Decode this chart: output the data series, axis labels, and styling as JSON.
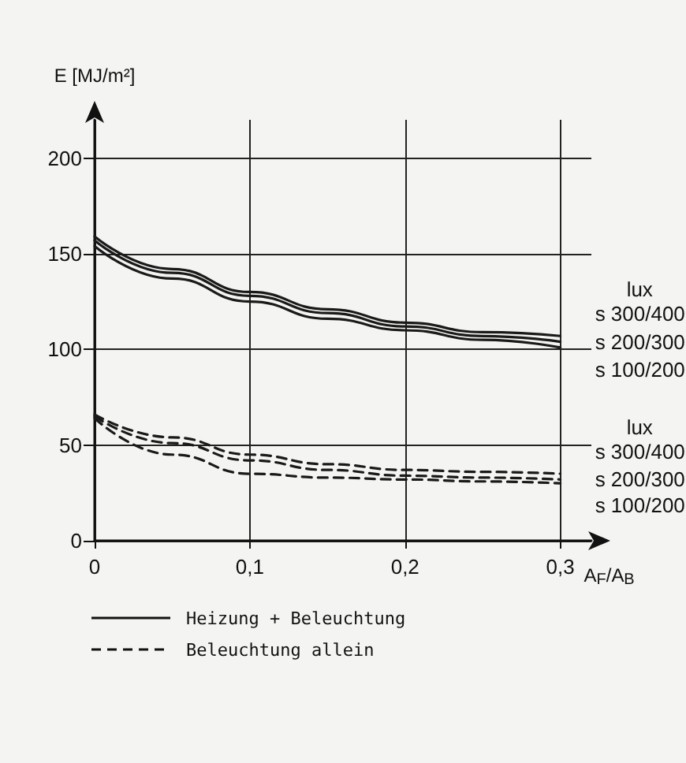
{
  "chart_data": {
    "type": "line",
    "ylabel": "E [MJ/m²]",
    "xlabel": "A$_{F}$/A$_{B}$",
    "x": [
      0,
      0.05,
      0.1,
      0.15,
      0.2,
      0.25,
      0.3
    ],
    "xlim": [
      0,
      0.32
    ],
    "xticks": [
      0,
      {
        "value": 0.1,
        "label": "0,1"
      },
      {
        "value": 0.2,
        "label": "0,2"
      },
      {
        "value": 0.3,
        "label": "0,3"
      }
    ],
    "ylim": [
      0,
      220
    ],
    "yticks": [
      0,
      50,
      100,
      150,
      200
    ],
    "grid": true,
    "legend": false,
    "marker": "none",
    "series": [
      {
        "name": "s 300/400",
        "color": "#1a1a1a",
        "line_style": "solid",
        "values": [
          159,
          142,
          130,
          121,
          114,
          109,
          107
        ]
      },
      {
        "name": "s 200/300",
        "color": "#1a1a1a",
        "line_style": "solid",
        "values": [
          157,
          140,
          128,
          119,
          112,
          107,
          104
        ]
      },
      {
        "name": "s 100/200",
        "color": "#1a1a1a",
        "line_style": "solid",
        "values": [
          154,
          137,
          125,
          116,
          110,
          105,
          101
        ]
      },
      {
        "name": "s 300/400",
        "color": "#1a1a1a",
        "line_style": "dashed",
        "values": [
          66,
          54,
          45,
          40,
          37,
          36,
          35
        ]
      },
      {
        "name": "s 200/300",
        "color": "#1a1a1a",
        "line_style": "dashed",
        "values": [
          65,
          51,
          42,
          37,
          34,
          33,
          32
        ]
      },
      {
        "name": "s 100/200",
        "color": "#1a1a1a",
        "line_style": "dashed",
        "values": [
          64,
          45,
          35,
          33,
          32,
          31,
          30
        ]
      }
    ],
    "annotations": [
      "lux",
      "lux",
      "Heizung + Beleuchtung",
      "Beleuchtung allein"
    ]
  }
}
